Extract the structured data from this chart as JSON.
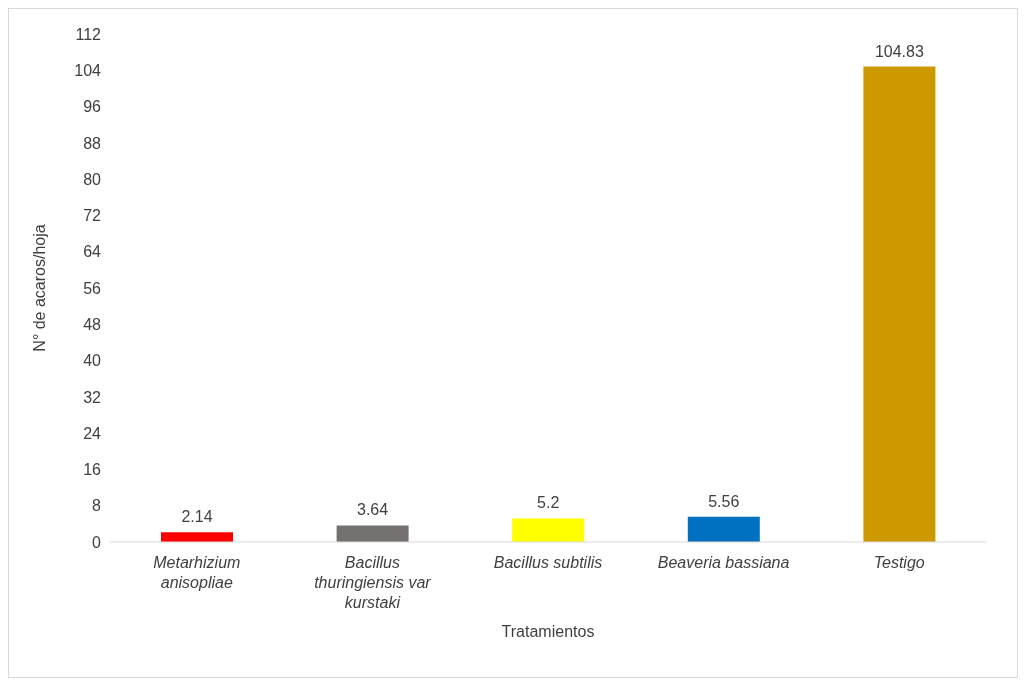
{
  "chart_data": {
    "type": "bar",
    "ylabel": "N° de acaros/hoja",
    "xlabel": "Tratamientos",
    "categories": [
      "Metarhizium anisopliae",
      "Bacillus thuringiensis var kurstaki",
      "Bacillus subtilis",
      "Beaveria bassiana",
      "Testigo"
    ],
    "values": [
      2.14,
      3.64,
      5.2,
      5.56,
      104.83
    ],
    "colors": [
      "#ff0000",
      "#767171",
      "#ffff00",
      "#0070c0",
      "#cc9900"
    ],
    "ylim": [
      0,
      112
    ],
    "yticks": [
      0,
      8,
      16,
      24,
      32,
      40,
      48,
      56,
      64,
      72,
      80,
      88,
      96,
      104,
      112
    ],
    "data_labels": true
  }
}
